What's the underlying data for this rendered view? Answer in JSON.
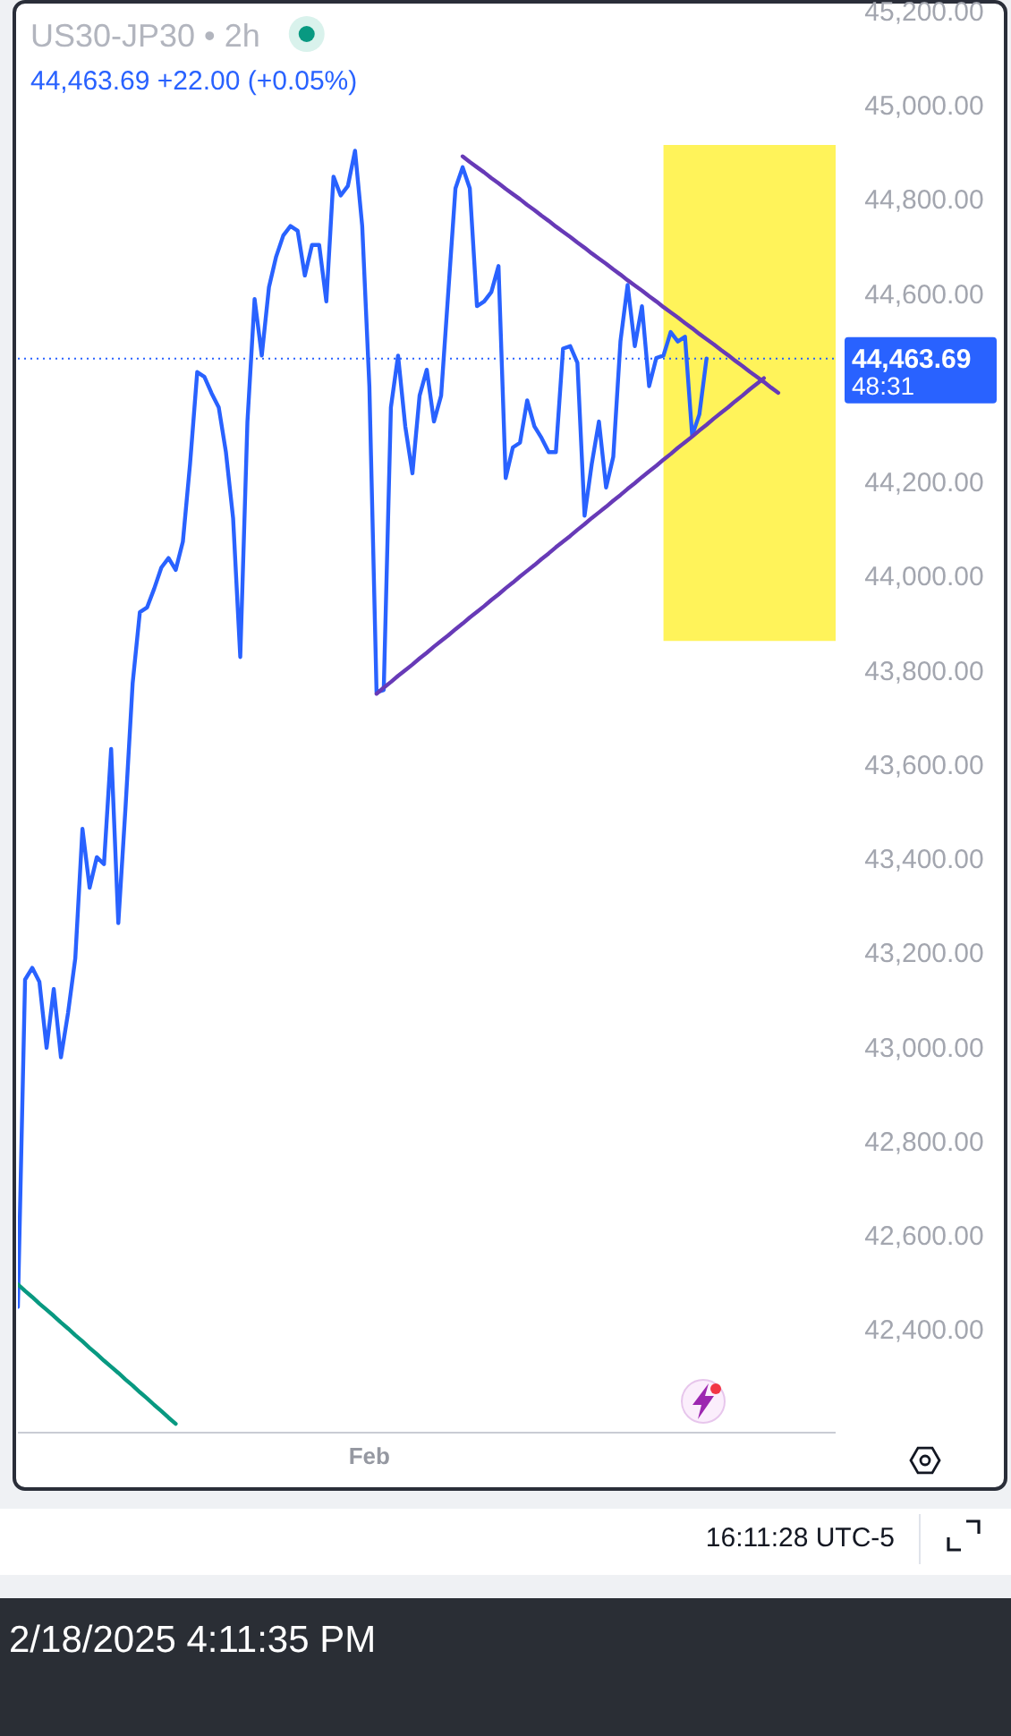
{
  "chart_data": {
    "type": "line",
    "title": "US30-JP30 • 2h",
    "subtitle": "44,463.69 +22.00 (+0.05%)",
    "categories": [
      null,
      null,
      null,
      null,
      null,
      null,
      null,
      null,
      null,
      null,
      null,
      null,
      null,
      null,
      null,
      null,
      null,
      null,
      null,
      null,
      null,
      null,
      null,
      null,
      null,
      null,
      null,
      null,
      null,
      null,
      null,
      null,
      null,
      null,
      null,
      null,
      null,
      null,
      null,
      null,
      null,
      null,
      null,
      null,
      null,
      null,
      null,
      null,
      null,
      "Feb",
      null,
      null,
      null,
      null,
      null,
      null,
      null,
      null,
      null,
      null,
      null,
      null,
      null,
      null,
      null,
      null,
      null,
      null,
      null,
      null,
      null,
      null,
      null,
      null,
      null,
      null,
      null,
      null,
      null,
      null,
      null,
      null,
      null,
      null,
      null,
      null,
      null,
      null,
      null,
      null,
      null,
      null,
      null,
      null,
      null,
      null,
      null,
      null,
      null,
      null,
      null,
      null,
      null,
      null,
      null,
      null,
      null,
      null,
      null,
      null,
      null,
      null,
      null,
      null,
      null
    ],
    "series": [
      {
        "color": "#2962ff",
        "values": [
          42450,
          43145,
          43170,
          43140,
          43000,
          43125,
          42980,
          43075,
          43190,
          43465,
          43340,
          43405,
          43390,
          43635,
          43265,
          43510,
          43775,
          43925,
          43935,
          43975,
          44020,
          44040,
          44015,
          44075,
          44240,
          44435,
          44425,
          44390,
          44360,
          44265,
          44125,
          43830,
          44330,
          44590,
          44470,
          44615,
          44680,
          44725,
          44745,
          44735,
          44640,
          44705,
          44705,
          44585,
          44850,
          44810,
          44830,
          44905,
          44745,
          44405,
          43755,
          43760,
          44360,
          44470,
          44320,
          44220,
          44385,
          44440,
          44330,
          44385,
          44605,
          44825,
          44870,
          44825,
          44575,
          44585,
          44605,
          44660,
          44210,
          44275,
          44285,
          44375,
          44320,
          44295,
          44265,
          44265,
          44485,
          44490,
          44455,
          44130,
          44240,
          44330,
          44190,
          44255,
          44500,
          44620,
          44490,
          44575,
          44405,
          44465,
          44470,
          44520,
          44500,
          44510,
          44300,
          44345,
          44463.69,
          null,
          null,
          null,
          null,
          null,
          null,
          null,
          null,
          null,
          null,
          null,
          null,
          null,
          null,
          null,
          null,
          null,
          null
        ]
      },
      {
        "color": "#089981",
        "values": [
          42498,
          42484,
          42471,
          42457,
          42444,
          42431,
          42417,
          42404,
          42390,
          42377,
          42363,
          42350,
          42336,
          42323,
          42310,
          42296,
          42283,
          42269,
          42256,
          42242,
          42229,
          42215,
          42202,
          null,
          null,
          null,
          null,
          null,
          null,
          null,
          null,
          null,
          null,
          null,
          null,
          null,
          null,
          null,
          null,
          null,
          null,
          null,
          null,
          null,
          null,
          null,
          null,
          null,
          null,
          null,
          null,
          null,
          null,
          null,
          null,
          null,
          null,
          null,
          null,
          null,
          null,
          null,
          null,
          null,
          null,
          null,
          null,
          null,
          null,
          null,
          null,
          null,
          null,
          null,
          null,
          null,
          null,
          null,
          null,
          null,
          null,
          null,
          null,
          null,
          null,
          null,
          null,
          null,
          null,
          null,
          null,
          null,
          null,
          null,
          null,
          null,
          null,
          null,
          null,
          null,
          null,
          null,
          null,
          null,
          null,
          null,
          null,
          null,
          null,
          null,
          null,
          null,
          null,
          null,
          null
        ]
      },
      {
        "color": "#673ab7",
        "values": [
          null,
          null,
          null,
          null,
          null,
          null,
          null,
          null,
          null,
          null,
          null,
          null,
          null,
          null,
          null,
          null,
          null,
          null,
          null,
          null,
          null,
          null,
          null,
          null,
          null,
          null,
          null,
          null,
          null,
          null,
          null,
          null,
          null,
          null,
          null,
          null,
          null,
          null,
          null,
          null,
          null,
          null,
          null,
          null,
          null,
          null,
          null,
          null,
          null,
          null,
          null,
          null,
          null,
          null,
          null,
          null,
          null,
          null,
          null,
          null,
          null,
          null,
          44893,
          44881,
          44870,
          44859,
          44847,
          44836,
          44824,
          44813,
          44802,
          44790,
          44779,
          44767,
          44756,
          44744,
          44733,
          44722,
          44710,
          44699,
          44687,
          44676,
          44665,
          44653,
          44642,
          44630,
          44619,
          44608,
          44596,
          44585,
          44573,
          44562,
          44551,
          44539,
          44528,
          44516,
          44505,
          44494,
          44482,
          44471,
          44459,
          44448,
          44436,
          44425,
          44414,
          44402,
          44391,
          null,
          null,
          null,
          null,
          null,
          null,
          null,
          null
        ]
      },
      {
        "color": "#673ab7",
        "values": [
          null,
          null,
          null,
          null,
          null,
          null,
          null,
          null,
          null,
          null,
          null,
          null,
          null,
          null,
          null,
          null,
          null,
          null,
          null,
          null,
          null,
          null,
          null,
          null,
          null,
          null,
          null,
          null,
          null,
          null,
          null,
          null,
          null,
          null,
          null,
          null,
          null,
          null,
          null,
          null,
          null,
          null,
          null,
          null,
          null,
          null,
          null,
          null,
          null,
          null,
          43752,
          43765,
          43777,
          43790,
          43802,
          43814,
          43827,
          43839,
          43852,
          43864,
          43876,
          43889,
          43901,
          43914,
          43926,
          43938,
          43951,
          43963,
          43976,
          43988,
          44001,
          44013,
          44025,
          44038,
          44050,
          44063,
          44075,
          44087,
          44100,
          44112,
          44125,
          44137,
          44149,
          44162,
          44174,
          44187,
          44199,
          44212,
          44224,
          44236,
          44249,
          44261,
          44274,
          44286,
          44298,
          44311,
          44323,
          44336,
          44348,
          44360,
          44373,
          44385,
          44398,
          44410,
          44422,
          null,
          null,
          null,
          null,
          null,
          null,
          null,
          null,
          null,
          null
        ]
      },
      {
        "type": "area",
        "color": "#fff35a",
        "values": [
          null,
          null,
          null,
          null,
          null,
          null,
          null,
          null,
          null,
          null,
          null,
          null,
          null,
          null,
          null,
          null,
          null,
          null,
          null,
          null,
          null,
          null,
          null,
          null,
          null,
          null,
          null,
          null,
          null,
          null,
          null,
          null,
          null,
          null,
          null,
          null,
          null,
          null,
          null,
          null,
          null,
          null,
          null,
          null,
          null,
          null,
          null,
          null,
          null,
          null,
          null,
          null,
          null,
          null,
          null,
          null,
          null,
          null,
          null,
          null,
          null,
          null,
          null,
          null,
          null,
          null,
          null,
          null,
          null,
          null,
          null,
          null,
          null,
          null,
          null,
          null,
          null,
          null,
          null,
          null,
          null,
          null,
          null,
          null,
          null,
          null,
          null,
          null,
          null,
          null,
          null,
          null,
          null,
          null,
          null,
          null,
          null,
          null,
          null,
          null,
          null,
          null,
          null,
          null,
          null,
          null,
          null,
          null,
          null,
          null,
          null,
          null,
          null,
          null,
          null
        ],
        "upper": [
          null,
          null,
          null,
          null,
          null,
          null,
          null,
          null,
          null,
          null,
          null,
          null,
          null,
          null,
          null,
          null,
          null,
          null,
          null,
          null,
          null,
          null,
          null,
          null,
          null,
          null,
          null,
          null,
          null,
          null,
          null,
          null,
          null,
          null,
          null,
          null,
          null,
          null,
          null,
          null,
          null,
          null,
          null,
          null,
          null,
          null,
          null,
          null,
          null,
          null,
          null,
          null,
          null,
          null,
          null,
          null,
          null,
          null,
          null,
          null,
          null,
          null,
          null,
          null,
          null,
          null,
          null,
          null,
          null,
          null,
          null,
          null,
          null,
          null,
          null,
          null,
          null,
          null,
          null,
          null,
          null,
          null,
          null,
          null,
          null,
          null,
          null,
          null,
          null,
          null,
          44917,
          44917,
          44917,
          44917,
          44917,
          44917,
          44917,
          44917,
          44917,
          44917,
          44917,
          44917,
          44917,
          44917,
          44917,
          44917,
          44917,
          44917,
          44917,
          44917,
          44917,
          44917,
          44917,
          44917,
          44917
        ],
        "lower": [
          null,
          null,
          null,
          null,
          null,
          null,
          null,
          null,
          null,
          null,
          null,
          null,
          null,
          null,
          null,
          null,
          null,
          null,
          null,
          null,
          null,
          null,
          null,
          null,
          null,
          null,
          null,
          null,
          null,
          null,
          null,
          null,
          null,
          null,
          null,
          null,
          null,
          null,
          null,
          null,
          null,
          null,
          null,
          null,
          null,
          null,
          null,
          null,
          null,
          null,
          null,
          null,
          null,
          null,
          null,
          null,
          null,
          null,
          null,
          null,
          null,
          null,
          null,
          null,
          null,
          null,
          null,
          null,
          null,
          null,
          null,
          null,
          null,
          null,
          null,
          null,
          null,
          null,
          null,
          null,
          null,
          null,
          null,
          null,
          null,
          null,
          null,
          null,
          null,
          null,
          43864,
          43864,
          43864,
          43864,
          43864,
          43864,
          43864,
          43864,
          43864,
          43864,
          43864,
          43864,
          43864,
          43864,
          43864,
          43864,
          43864,
          43864,
          43864,
          43864,
          43864,
          43864,
          43864,
          43864,
          43864
        ]
      }
    ],
    "ylim": [
      42185,
      45225
    ],
    "yticks": [
      {
        "value": 42400,
        "label": "42,400.00"
      },
      {
        "value": 42600,
        "label": "42,600.00"
      },
      {
        "value": 42800,
        "label": "42,800.00"
      },
      {
        "value": 43000,
        "label": "43,000.00"
      },
      {
        "value": 43200,
        "label": "43,200.00"
      },
      {
        "value": 43400,
        "label": "43,400.00"
      },
      {
        "value": 43600,
        "label": "43,600.00"
      },
      {
        "value": 43800,
        "label": "43,800.00"
      },
      {
        "value": 44000,
        "label": "44,000.00"
      },
      {
        "value": 44200,
        "label": "44,200.00"
      },
      {
        "value": 44600,
        "label": "44,600.00"
      },
      {
        "value": 44800,
        "label": "44,800.00"
      },
      {
        "value": 45000,
        "label": "45,000.00"
      },
      {
        "value": 45200,
        "label": "45,200.00"
      }
    ],
    "ref_lines": [
      {
        "axis": "y",
        "value": 44463.69,
        "label": "44,463.69",
        "color": "#2962ff",
        "line_style": "dotted"
      }
    ],
    "annotations": [
      "48:31",
      "16:11:28 UTC-5",
      "2/18/2025 4:11:35 PM"
    ]
  }
}
